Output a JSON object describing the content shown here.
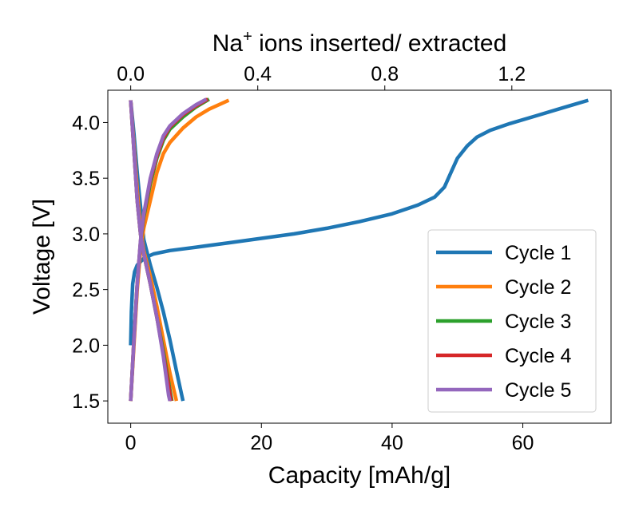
{
  "chart_data": {
    "type": "line",
    "xlabel": "Capacity [mAh/g]",
    "ylabel": "Voltage [V]",
    "top_xlabel": {
      "main": "Na",
      "superscript": "+",
      "rest": " ions inserted/ extracted"
    },
    "xlim": [
      -3.5,
      73.5
    ],
    "ylim": [
      1.3,
      4.29
    ],
    "xticks": [
      0,
      20,
      40,
      60
    ],
    "xtick_labels": [
      "0",
      "20",
      "40",
      "60"
    ],
    "yticks": [
      1.5,
      2.0,
      2.5,
      3.0,
      3.5,
      4.0
    ],
    "ytick_labels": [
      "1.5",
      "2.0",
      "2.5",
      "3.0",
      "3.5",
      "4.0"
    ],
    "top_axis": {
      "capacity_per_unit": 48.6,
      "ticks": [
        0.0,
        0.4,
        0.8,
        1.2
      ],
      "tick_labels": [
        "0.0",
        "0.4",
        "0.8",
        "1.2"
      ]
    },
    "grid": false,
    "legend_position": "lower-right",
    "series": [
      {
        "name": "Cycle 1",
        "color": "#1f77b4",
        "segments": [
          [
            [
              0,
              2.0
            ],
            [
              0.1,
              2.3
            ],
            [
              0.3,
              2.55
            ],
            [
              0.6,
              2.66
            ],
            [
              1.0,
              2.72
            ],
            [
              2,
              2.78
            ],
            [
              3.5,
              2.82
            ],
            [
              6,
              2.85
            ],
            [
              10,
              2.88
            ],
            [
              15,
              2.92
            ],
            [
              20,
              2.96
            ],
            [
              25,
              3.0
            ],
            [
              30,
              3.05
            ],
            [
              35,
              3.11
            ],
            [
              40,
              3.18
            ],
            [
              44,
              3.26
            ],
            [
              46.5,
              3.33
            ],
            [
              48,
              3.42
            ],
            [
              49,
              3.55
            ],
            [
              50,
              3.68
            ],
            [
              51.5,
              3.79
            ],
            [
              53,
              3.87
            ],
            [
              55,
              3.93
            ],
            [
              58,
              3.99
            ],
            [
              62,
              4.06
            ],
            [
              66,
              4.13
            ],
            [
              70,
              4.2
            ]
          ],
          [
            [
              0,
              4.2
            ],
            [
              0.5,
              3.9
            ],
            [
              1,
              3.55
            ],
            [
              1.5,
              3.25
            ],
            [
              2,
              2.95
            ],
            [
              3,
              2.72
            ],
            [
              4,
              2.52
            ],
            [
              5,
              2.3
            ],
            [
              6,
              2.05
            ],
            [
              7,
              1.77
            ],
            [
              8,
              1.5
            ]
          ]
        ]
      },
      {
        "name": "Cycle 2",
        "color": "#ff7f0e",
        "segments": [
          [
            [
              0,
              1.5
            ],
            [
              0.5,
              2.0
            ],
            [
              1,
              2.5
            ],
            [
              1.5,
              2.85
            ],
            [
              2,
              3.05
            ],
            [
              3,
              3.3
            ],
            [
              4,
              3.55
            ],
            [
              5,
              3.72
            ],
            [
              6,
              3.82
            ],
            [
              8,
              3.95
            ],
            [
              10,
              4.05
            ],
            [
              12,
              4.12
            ],
            [
              15,
              4.2
            ]
          ],
          [
            [
              0,
              4.2
            ],
            [
              0.5,
              3.8
            ],
            [
              1,
              3.4
            ],
            [
              1.5,
              3.05
            ],
            [
              2,
              2.85
            ],
            [
              3,
              2.62
            ],
            [
              4,
              2.35
            ],
            [
              5,
              2.05
            ],
            [
              6,
              1.75
            ],
            [
              7,
              1.5
            ]
          ]
        ]
      },
      {
        "name": "Cycle 3",
        "color": "#2ca02c",
        "segments": [
          [
            [
              0,
              1.5
            ],
            [
              0.5,
              2.05
            ],
            [
              1,
              2.55
            ],
            [
              1.5,
              2.92
            ],
            [
              2,
              3.15
            ],
            [
              3,
              3.45
            ],
            [
              4,
              3.68
            ],
            [
              5,
              3.84
            ],
            [
              6,
              3.94
            ],
            [
              8,
              4.05
            ],
            [
              10,
              4.14
            ],
            [
              12,
              4.21
            ]
          ],
          [
            [
              0,
              4.2
            ],
            [
              0.5,
              3.75
            ],
            [
              1,
              3.3
            ],
            [
              1.5,
              3.0
            ],
            [
              2,
              2.82
            ],
            [
              3,
              2.55
            ],
            [
              4,
              2.25
            ],
            [
              5,
              1.95
            ],
            [
              6,
              1.6
            ],
            [
              6.3,
              1.5
            ]
          ]
        ]
      },
      {
        "name": "Cycle 4",
        "color": "#d62728",
        "segments": [
          [
            [
              0,
              1.5
            ],
            [
              0.5,
              2.05
            ],
            [
              1,
              2.55
            ],
            [
              1.5,
              2.93
            ],
            [
              2,
              3.17
            ],
            [
              3,
              3.48
            ],
            [
              4,
              3.7
            ],
            [
              5,
              3.86
            ],
            [
              6,
              3.96
            ],
            [
              8,
              4.07
            ],
            [
              10,
              4.15
            ],
            [
              11.8,
              4.21
            ]
          ],
          [
            [
              0,
              4.2
            ],
            [
              0.5,
              3.75
            ],
            [
              1,
              3.3
            ],
            [
              1.5,
              3.0
            ],
            [
              2,
              2.82
            ],
            [
              3,
              2.55
            ],
            [
              4,
              2.25
            ],
            [
              5,
              1.92
            ],
            [
              6,
              1.57
            ],
            [
              6.2,
              1.5
            ]
          ]
        ]
      },
      {
        "name": "Cycle 5",
        "color": "#9467bd",
        "segments": [
          [
            [
              0,
              1.5
            ],
            [
              0.5,
              2.05
            ],
            [
              1,
              2.55
            ],
            [
              1.5,
              2.94
            ],
            [
              2,
              3.18
            ],
            [
              3,
              3.5
            ],
            [
              4,
              3.72
            ],
            [
              5,
              3.88
            ],
            [
              6,
              3.97
            ],
            [
              8,
              4.08
            ],
            [
              10,
              4.16
            ],
            [
              11.6,
              4.21
            ]
          ],
          [
            [
              0,
              4.2
            ],
            [
              0.5,
              3.75
            ],
            [
              1,
              3.3
            ],
            [
              1.5,
              3.0
            ],
            [
              2,
              2.82
            ],
            [
              3,
              2.55
            ],
            [
              4,
              2.25
            ],
            [
              5,
              1.9
            ],
            [
              5.8,
              1.55
            ],
            [
              6,
              1.5
            ]
          ]
        ]
      }
    ]
  }
}
